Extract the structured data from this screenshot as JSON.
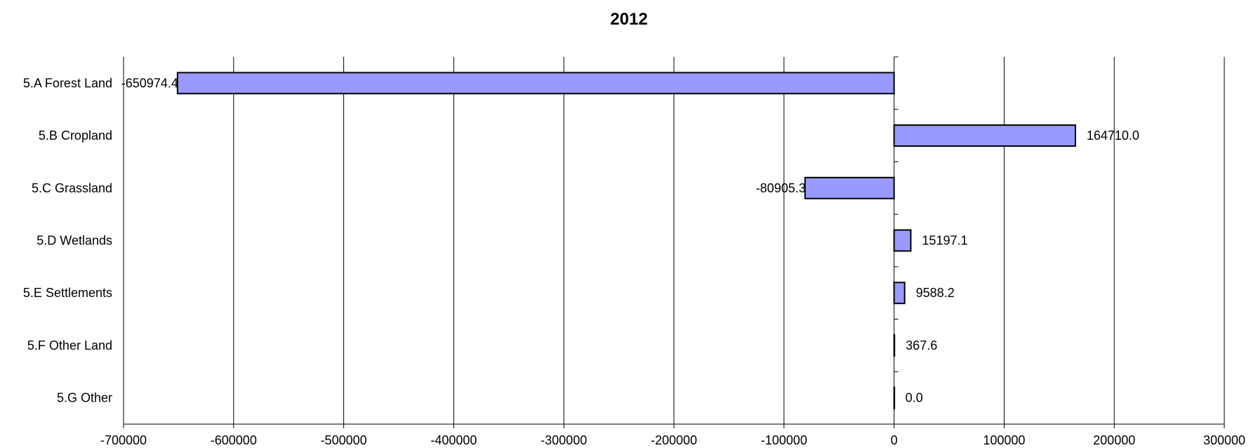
{
  "chart_data": {
    "type": "bar",
    "orientation": "horizontal",
    "title": "2012",
    "xlabel": "",
    "ylabel": "",
    "categories": [
      "5.A Forest Land",
      "5.B Cropland",
      "5.C Grassland",
      "5.D Wetlands",
      "5.E Settlements",
      "5.F Other Land",
      "5.G Other"
    ],
    "values": [
      -650974.4,
      164710.0,
      -80905.3,
      15197.1,
      9588.2,
      367.6,
      0.0
    ],
    "data_labels": [
      "-650974.4",
      "164710.0",
      "-80905.3",
      "15197.1",
      "9588.2",
      "367.6",
      "0.0"
    ],
    "xlim": [
      -700000,
      300000
    ],
    "xticks": [
      -700000,
      -600000,
      -500000,
      -400000,
      -300000,
      -200000,
      -100000,
      0,
      100000,
      200000,
      300000
    ],
    "xtick_labels": [
      "-700000",
      "-600000",
      "-500000",
      "-400000",
      "-300000",
      "-200000",
      "-100000",
      "0",
      "100000",
      "200000",
      "300000"
    ],
    "grid": "vertical",
    "legend": "none",
    "bar_color": "#9999ff",
    "bar_edge_color": "#000000"
  }
}
